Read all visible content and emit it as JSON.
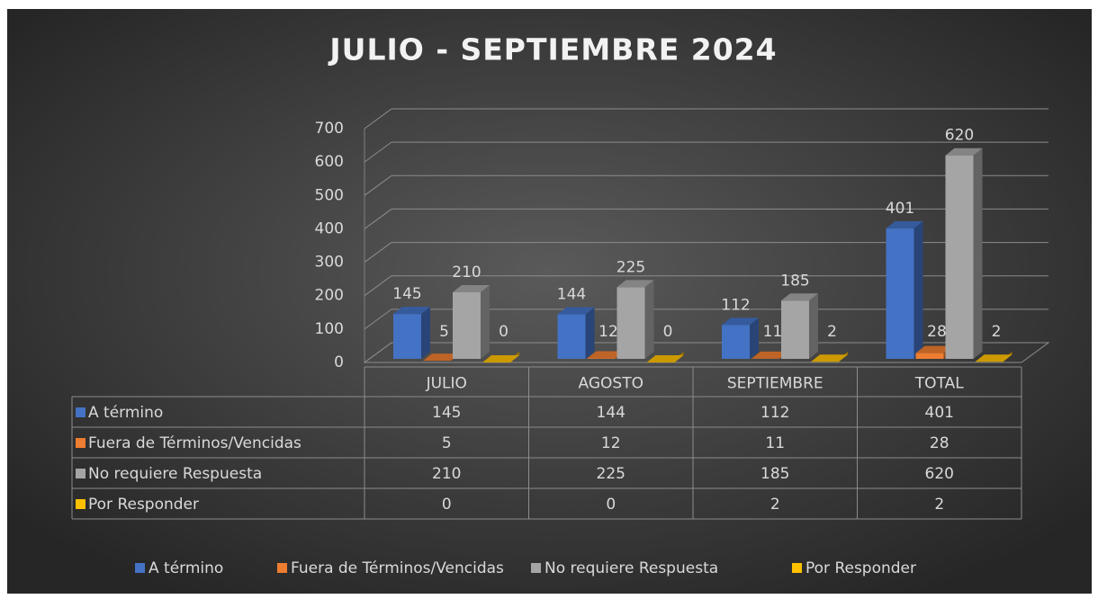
{
  "chart_data": {
    "type": "bar",
    "title": "JULIO - SEPTIEMBRE 2024",
    "categories": [
      "JULIO",
      "AGOSTO",
      "SEPTIEMBRE",
      "TOTAL"
    ],
    "series": [
      {
        "name": "A término",
        "color": "#4472c4",
        "values": [
          145,
          144,
          112,
          401
        ]
      },
      {
        "name": "Fuera de Términos/Vencidas",
        "color": "#ed7d31",
        "values": [
          5,
          12,
          11,
          28
        ]
      },
      {
        "name": "No requiere Respuesta",
        "color": "#a5a5a5",
        "values": [
          210,
          225,
          185,
          620
        ]
      },
      {
        "name": "Por Responder",
        "color": "#ffc000",
        "values": [
          0,
          0,
          2,
          2
        ]
      }
    ],
    "ylim": [
      0,
      700
    ],
    "yticks": [
      0,
      100,
      200,
      300,
      400,
      500,
      600,
      700
    ],
    "grid": true,
    "legend": "bottom"
  }
}
